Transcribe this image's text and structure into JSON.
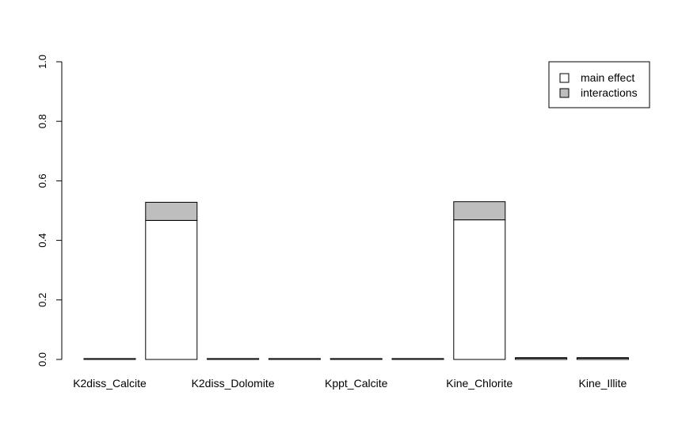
{
  "chart_data": {
    "type": "bar",
    "stacked": true,
    "categories": [
      "K2diss_Calcite",
      "",
      "K2diss_Dolomite",
      "",
      "Kppt_Calcite",
      "",
      "Kine_Chlorite",
      "",
      "Kine_Illite"
    ],
    "series": [
      {
        "name": "main effect",
        "color": "#ffffff",
        "values": [
          0.003,
          0.467,
          0.003,
          0.003,
          0.003,
          0.003,
          0.469,
          0.004,
          0.004
        ]
      },
      {
        "name": "interactions",
        "color": "#bebebe",
        "values": [
          0.0,
          0.061,
          0.0,
          0.0,
          0.0,
          0.0,
          0.061,
          0.002,
          0.002
        ]
      }
    ],
    "yticks": [
      "0.0",
      "0.2",
      "0.4",
      "0.6",
      "0.8",
      "1.0"
    ],
    "ylim": [
      0,
      1
    ],
    "title": "",
    "xlabel": "",
    "ylabel": "",
    "grid": false,
    "legend_position": "top-right"
  }
}
